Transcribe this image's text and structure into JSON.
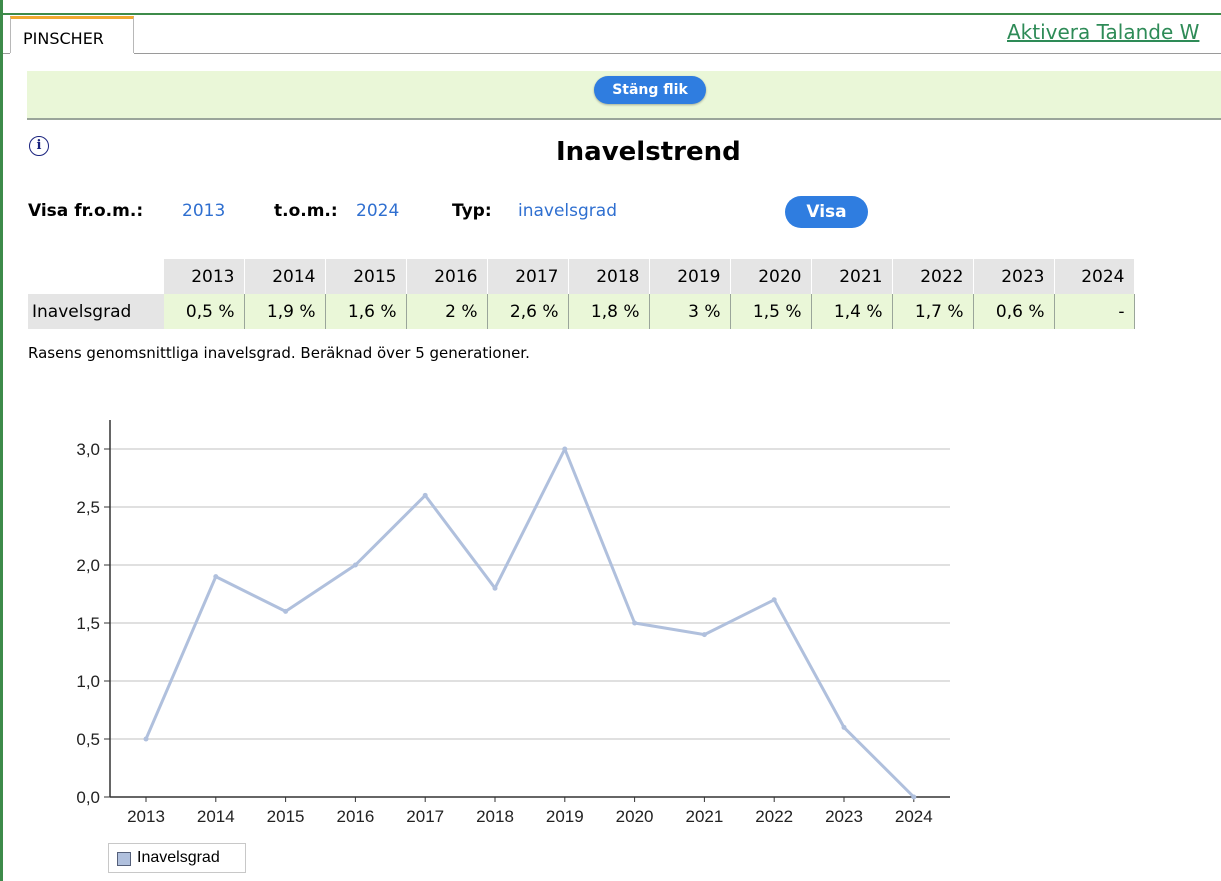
{
  "tab": {
    "label": "PINSCHER"
  },
  "header": {
    "aktivera_link": "Aktivera Talande W"
  },
  "close_button": {
    "label": "Stäng flik"
  },
  "page": {
    "title": "Inavelstrend",
    "info_icon": "info-icon"
  },
  "filters": {
    "from_label": "Visa fr.o.m.:",
    "from_value": "2013",
    "to_label": "t.o.m.:",
    "to_value": "2024",
    "type_label": "Typ:",
    "type_value": "inavelsgrad",
    "show_button": "Visa"
  },
  "table": {
    "row_label": "Inavelsgrad",
    "years": [
      "2013",
      "2014",
      "2015",
      "2016",
      "2017",
      "2018",
      "2019",
      "2020",
      "2021",
      "2022",
      "2023",
      "2024"
    ],
    "values": [
      "0,5 %",
      "1,9 %",
      "1,6 %",
      "2 %",
      "2,6 %",
      "1,8 %",
      "3 %",
      "1,5 %",
      "1,4 %",
      "1,7 %",
      "0,6 %",
      "-"
    ]
  },
  "note": "Rasens genomsnittliga inavelsgrad. Beräknad över 5 generationer.",
  "chart_data": {
    "type": "line",
    "categories": [
      "2013",
      "2014",
      "2015",
      "2016",
      "2017",
      "2018",
      "2019",
      "2020",
      "2021",
      "2022",
      "2023",
      "2024"
    ],
    "series": [
      {
        "name": "Inavelsgrad",
        "values": [
          0.5,
          1.9,
          1.6,
          2.0,
          2.6,
          1.8,
          3.0,
          1.5,
          1.4,
          1.7,
          0.6,
          0.0
        ],
        "color": "#b0c0dd"
      }
    ],
    "yticks": [
      "0,0",
      "0,5",
      "1,0",
      "1,5",
      "2,0",
      "2,5",
      "3,0"
    ],
    "ylim": [
      0,
      3
    ],
    "grid": true,
    "legend": "bottom-left"
  },
  "colors": {
    "accent_blue": "#2f7de0",
    "link_blue": "#2f6fd0",
    "link_green": "#2e8b57",
    "bar_green": "#eaf7d8",
    "line": "#b0c0dd"
  }
}
